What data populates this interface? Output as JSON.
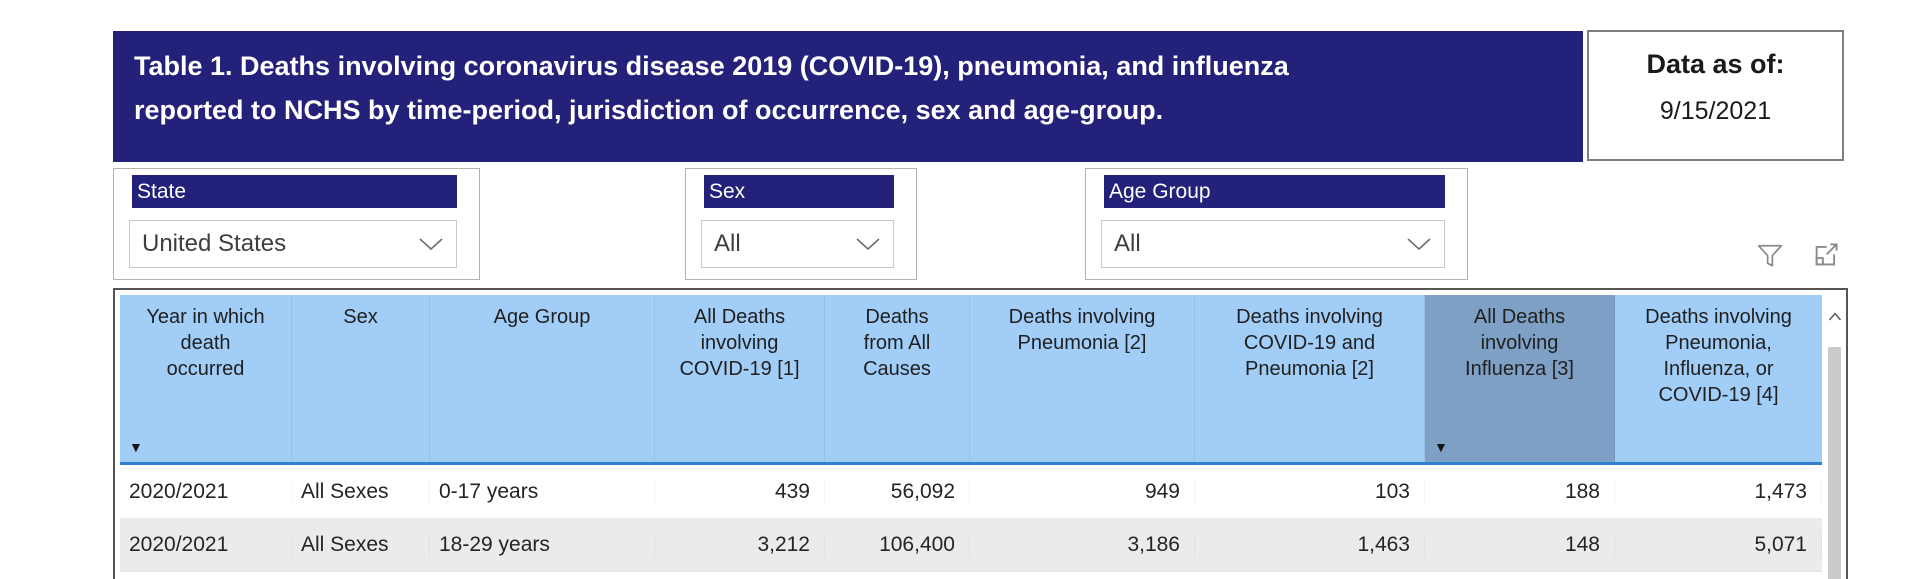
{
  "header": {
    "title": "Table 1. Deaths involving coronavirus disease 2019 (COVID-19), pneumonia, and influenza\nreported to NCHS by time-period, jurisdiction of occurrence, sex and age-group.",
    "data_as_of_label": "Data as of:",
    "data_as_of_value": "9/15/2021"
  },
  "filters": {
    "state": {
      "label": "State",
      "value": "United States"
    },
    "sex": {
      "label": "Sex",
      "value": "All"
    },
    "age_group": {
      "label": "Age Group",
      "value": "All"
    }
  },
  "toolbar_icons": [
    "funnel-icon",
    "focus-mode-icon"
  ],
  "table": {
    "columns": [
      {
        "id": "year",
        "label": "Year in which\ndeath\noccurred",
        "sorted": true,
        "selected": false
      },
      {
        "id": "sex",
        "label": "Sex",
        "sorted": false,
        "selected": false
      },
      {
        "id": "age-group",
        "label": "Age Group",
        "sorted": false,
        "selected": false
      },
      {
        "id": "covid-deaths",
        "label": "All Deaths\ninvolving\nCOVID-19 [1]",
        "sorted": false,
        "selected": false
      },
      {
        "id": "all-causes",
        "label": "Deaths\nfrom All\nCauses",
        "sorted": false,
        "selected": false
      },
      {
        "id": "pneumonia",
        "label": "Deaths involving\nPneumonia [2]",
        "sorted": false,
        "selected": false
      },
      {
        "id": "covid-pneumonia",
        "label": "Deaths involving\nCOVID-19 and\nPneumonia [2]",
        "sorted": false,
        "selected": false
      },
      {
        "id": "influenza",
        "label": "All Deaths\ninvolving\nInfluenza [3]",
        "sorted": true,
        "selected": true
      },
      {
        "id": "pic",
        "label": "Deaths involving\nPneumonia,\nInfluenza, or\nCOVID-19 [4]",
        "sorted": false,
        "selected": false
      }
    ],
    "rows": [
      [
        "2020/2021",
        "All Sexes",
        "0-17 years",
        "439",
        "56,092",
        "949",
        "103",
        "188",
        "1,473"
      ],
      [
        "2020/2021",
        "All Sexes",
        "18-29 years",
        "3,212",
        "106,400",
        "3,186",
        "1,463",
        "148",
        "5,071"
      ]
    ]
  },
  "colors": {
    "navy": "#232179",
    "header_blue": "#A1CDF7",
    "selected_column": "#7EA0C5",
    "header_underline": "#2E7FD0",
    "alt_row": "#EBEBEB"
  }
}
